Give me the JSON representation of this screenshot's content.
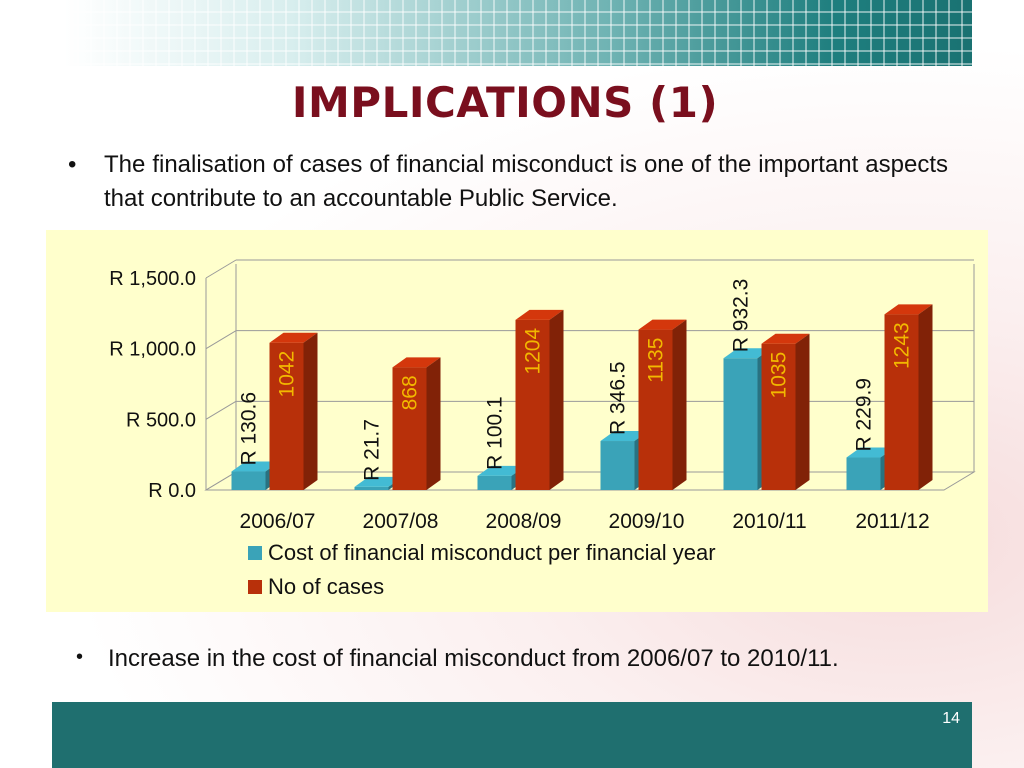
{
  "slide": {
    "title": "IMPLICATIONS (1)",
    "bullet_1": "The finalisation of cases of financial misconduct is one of the important aspects that contribute to an accountable Public Service.",
    "bullet_2": "Increase in the cost of financial misconduct from 2006/07 to 2010/11.",
    "bullet_glyph": "•",
    "page_number": "14"
  },
  "colors": {
    "title": "#7a0f1e",
    "header_band": "#1a7272",
    "footer_band": "#1f6f6f",
    "chart_background": "#ffffcc",
    "cost_bar": "#3aa3b8",
    "cases_bar": "#b8300a"
  },
  "chart_data": {
    "type": "bar",
    "style": "3d-clustered-column",
    "categories": [
      "2006/07",
      "2007/08",
      "2008/09",
      "2009/10",
      "2010/11",
      "2011/12"
    ],
    "series": [
      {
        "name": "Cost of financial misconduct per financial year",
        "values": [
          130.6,
          21.7,
          100.1,
          346.5,
          932.3,
          229.9
        ],
        "labels": [
          "R 130.6",
          "R 21.7",
          "R 100.1",
          "R 346.5",
          "R 932.3",
          "R 229.9"
        ],
        "color": "#3aa3b8",
        "label_color": "#111111"
      },
      {
        "name": "No of cases",
        "values": [
          1042,
          868,
          1204,
          1135,
          1035,
          1243
        ],
        "labels": [
          "1042",
          "868",
          "1204",
          "1135",
          "1035",
          "1243"
        ],
        "color": "#b8300a",
        "label_color": "#f2b800"
      }
    ],
    "y_ticks": [
      "R 0.0",
      "R 500.0",
      "R 1,000.0",
      "R 1,500.0"
    ],
    "y_tick_values": [
      0,
      500,
      1000,
      1500
    ],
    "ylim": [
      0,
      1500
    ],
    "grid": true,
    "legend_position": "bottom-left",
    "data_labels": "rotated-vertical"
  }
}
